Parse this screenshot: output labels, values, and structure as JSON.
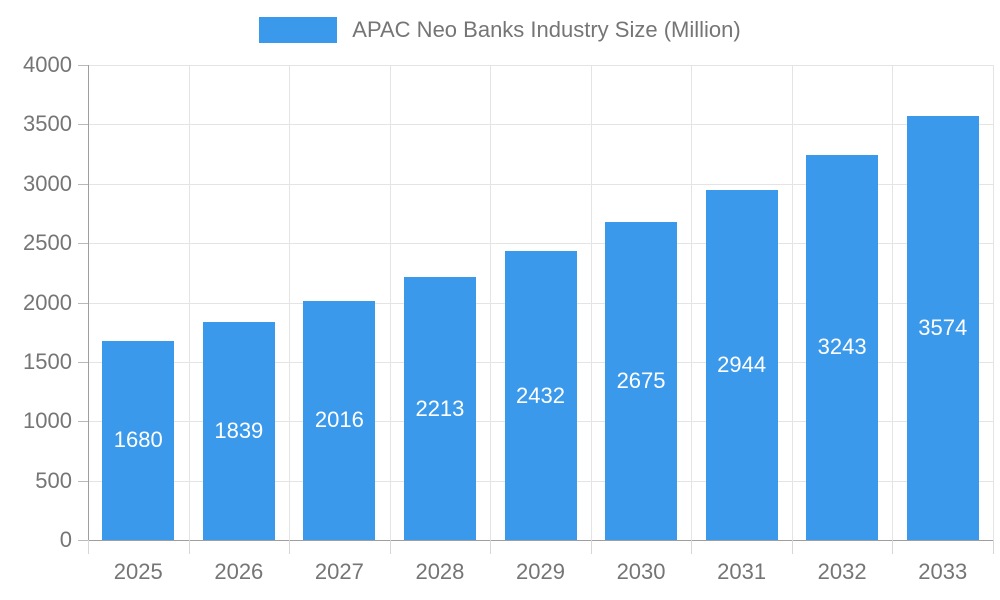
{
  "chart_data": {
    "type": "bar",
    "title": "APAC Neo Banks Industry Size (Million)",
    "categories": [
      "2025",
      "2026",
      "2027",
      "2028",
      "2029",
      "2030",
      "2031",
      "2032",
      "2033"
    ],
    "values": [
      1680,
      1839,
      2016,
      2213,
      2432,
      2675,
      2944,
      3243,
      3574
    ],
    "xlabel": "",
    "ylabel": "",
    "ylim": [
      0,
      4000
    ],
    "y_ticks": [
      0,
      500,
      1000,
      1500,
      2000,
      2500,
      3000,
      3500,
      4000
    ],
    "grid": true,
    "legend_position": "top",
    "bar_color": "#3B99EC",
    "bar_label_color": "#ffffff",
    "axis_text_color": "#757575"
  }
}
